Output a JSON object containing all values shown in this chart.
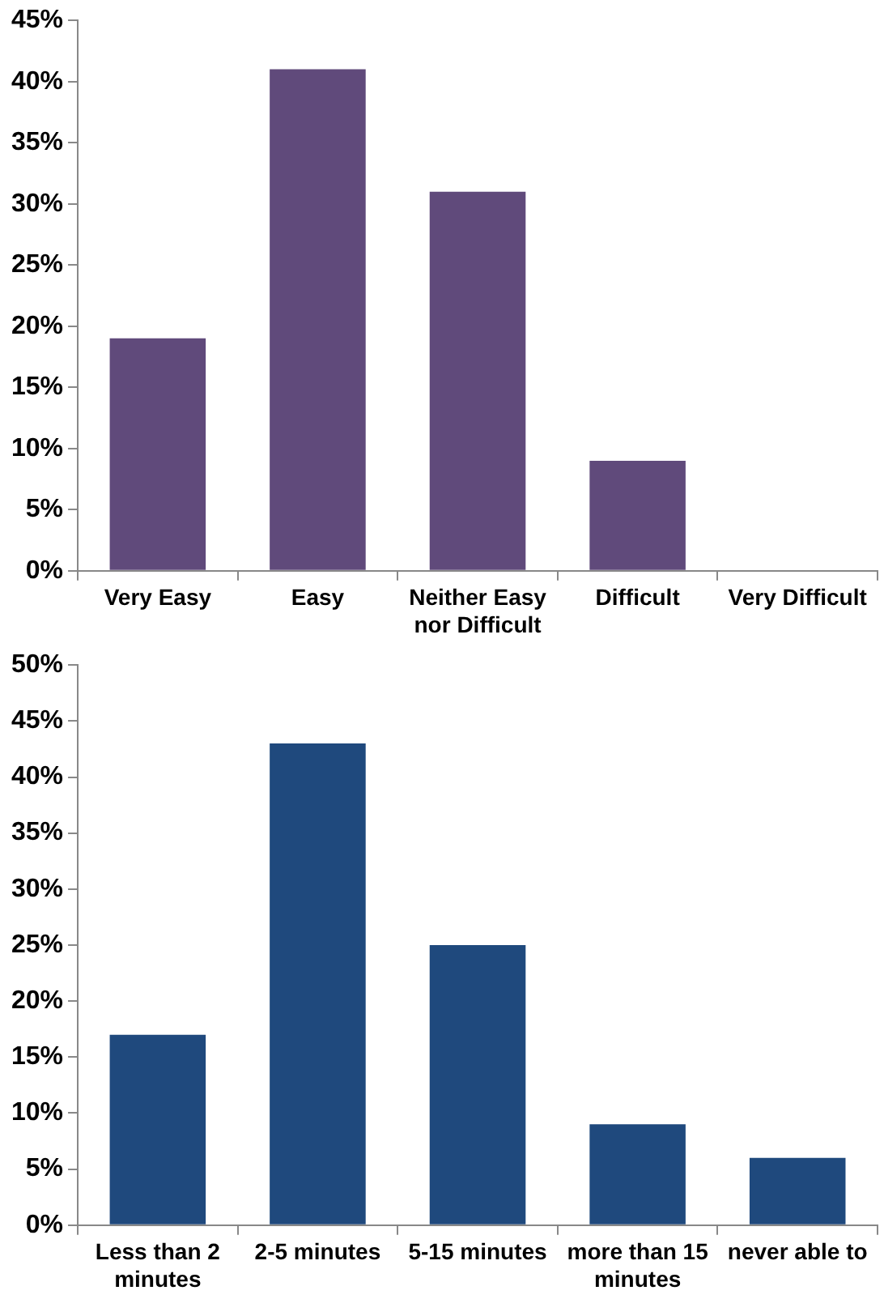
{
  "chart_data": [
    {
      "type": "bar",
      "categories": [
        "Very Easy",
        "Easy",
        "Neither Easy nor Difficult",
        "Difficult",
        "Very Difficult"
      ],
      "values": [
        19,
        41,
        31,
        9,
        0
      ],
      "color": "#604a7b",
      "ylim": [
        0,
        45
      ],
      "yticks": [
        {
          "value": 0,
          "label": "0%"
        },
        {
          "value": 5,
          "label": "5%"
        },
        {
          "value": 10,
          "label": "10%"
        },
        {
          "value": 15,
          "label": "15%"
        },
        {
          "value": 20,
          "label": "20%"
        },
        {
          "value": 25,
          "label": "25%"
        },
        {
          "value": 30,
          "label": "30%"
        },
        {
          "value": 35,
          "label": "35%"
        },
        {
          "value": 40,
          "label": "40%"
        },
        {
          "value": 45,
          "label": "45%"
        }
      ],
      "grid": false,
      "legend": false
    },
    {
      "type": "bar",
      "categories": [
        "Less than 2 minutes",
        "2-5 minutes",
        "5-15 minutes",
        "more than 15 minutes",
        "never able to"
      ],
      "values": [
        17,
        43,
        25,
        9,
        6
      ],
      "color": "#1f497d",
      "ylim": [
        0,
        50
      ],
      "yticks": [
        {
          "value": 0,
          "label": "0%"
        },
        {
          "value": 5,
          "label": "5%"
        },
        {
          "value": 10,
          "label": "10%"
        },
        {
          "value": 15,
          "label": "15%"
        },
        {
          "value": 20,
          "label": "20%"
        },
        {
          "value": 25,
          "label": "25%"
        },
        {
          "value": 30,
          "label": "30%"
        },
        {
          "value": 35,
          "label": "35%"
        },
        {
          "value": 40,
          "label": "40%"
        },
        {
          "value": 45,
          "label": "45%"
        },
        {
          "value": 50,
          "label": "50%"
        }
      ],
      "grid": false,
      "legend": false
    }
  ]
}
